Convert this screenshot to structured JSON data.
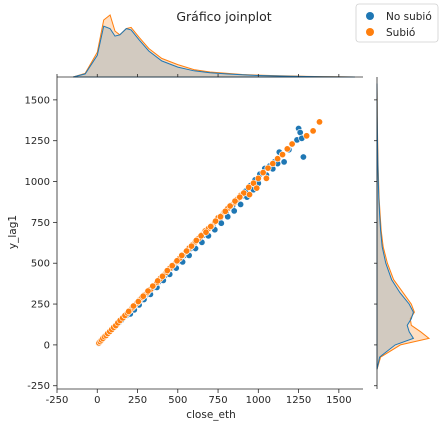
{
  "chart_data": {
    "type": "scatter",
    "title": "Gráfico joinplot",
    "xlabel": "close_eth",
    "ylabel": "y_lag1",
    "xlim": [
      -250,
      1650
    ],
    "ylim": [
      -270,
      1640
    ],
    "xticks": [
      -250,
      0,
      250,
      500,
      750,
      1000,
      1250,
      1500
    ],
    "yticks": [
      -250,
      0,
      250,
      500,
      750,
      1000,
      1250,
      1500
    ],
    "grid": false,
    "legend_position": "top-right",
    "series": [
      {
        "name": "No subió",
        "color": "#1f77b4",
        "points": [
          [
            8,
            10
          ],
          [
            15,
            18
          ],
          [
            22,
            26
          ],
          [
            30,
            32
          ],
          [
            40,
            45
          ],
          [
            48,
            52
          ],
          [
            58,
            60
          ],
          [
            70,
            75
          ],
          [
            85,
            88
          ],
          [
            95,
            100
          ],
          [
            108,
            110
          ],
          [
            120,
            122
          ],
          [
            135,
            138
          ],
          [
            150,
            152
          ],
          [
            165,
            168
          ],
          [
            180,
            185
          ],
          [
            195,
            200
          ],
          [
            210,
            212
          ],
          [
            225,
            230
          ],
          [
            240,
            245
          ],
          [
            255,
            260
          ],
          [
            270,
            272
          ],
          [
            285,
            290
          ],
          [
            300,
            305
          ],
          [
            320,
            322
          ],
          [
            340,
            345
          ],
          [
            360,
            362
          ],
          [
            380,
            385
          ],
          [
            400,
            402
          ],
          [
            420,
            425
          ],
          [
            440,
            448
          ],
          [
            460,
            470
          ],
          [
            480,
            492
          ],
          [
            500,
            510
          ],
          [
            520,
            532
          ],
          [
            540,
            548
          ],
          [
            560,
            575
          ],
          [
            580,
            590
          ],
          [
            600,
            615
          ],
          [
            620,
            640
          ],
          [
            640,
            660
          ],
          [
            660,
            672
          ],
          [
            680,
            695
          ],
          [
            700,
            720
          ],
          [
            720,
            735
          ],
          [
            740,
            760
          ],
          [
            760,
            770
          ],
          [
            780,
            800
          ],
          [
            800,
            812
          ],
          [
            820,
            838
          ],
          [
            840,
            850
          ],
          [
            860,
            880
          ],
          [
            880,
            900
          ],
          [
            900,
            912
          ],
          [
            920,
            940
          ],
          [
            950,
            975
          ],
          [
            980,
            1010
          ],
          [
            1010,
            1045
          ],
          [
            1040,
            1080
          ],
          [
            1070,
            1095
          ],
          [
            1100,
            1120
          ],
          [
            1130,
            1180
          ],
          [
            1160,
            1120
          ],
          [
            1190,
            1195
          ],
          [
            1240,
            1255
          ],
          [
            1250,
            1325
          ],
          [
            1260,
            1300
          ],
          [
            1270,
            1265
          ],
          [
            1280,
            1150
          ],
          [
            180,
            180
          ],
          [
            205,
            190
          ],
          [
            230,
            215
          ],
          [
            260,
            245
          ],
          [
            290,
            278
          ],
          [
            330,
            310
          ],
          [
            370,
            352
          ],
          [
            410,
            395
          ],
          [
            450,
            432
          ],
          [
            490,
            470
          ],
          [
            530,
            508
          ],
          [
            570,
            548
          ],
          [
            610,
            590
          ],
          [
            650,
            628
          ],
          [
            690,
            668
          ],
          [
            730,
            705
          ],
          [
            770,
            745
          ],
          [
            810,
            785
          ],
          [
            850,
            820
          ],
          [
            890,
            860
          ],
          [
            930,
            905
          ],
          [
            970,
            950
          ],
          [
            1000,
            990
          ],
          [
            1050,
            1040
          ],
          [
            1090,
            1078
          ],
          [
            1120,
            1110
          ]
        ]
      },
      {
        "name": "Subió",
        "color": "#ff7f0e",
        "points": [
          [
            10,
            12
          ],
          [
            18,
            20
          ],
          [
            26,
            30
          ],
          [
            35,
            40
          ],
          [
            45,
            50
          ],
          [
            55,
            58
          ],
          [
            65,
            70
          ],
          [
            78,
            82
          ],
          [
            90,
            95
          ],
          [
            102,
            108
          ],
          [
            115,
            118
          ],
          [
            128,
            135
          ],
          [
            142,
            150
          ],
          [
            158,
            165
          ],
          [
            172,
            180
          ],
          [
            188,
            196
          ],
          [
            202,
            210
          ],
          [
            218,
            228
          ],
          [
            232,
            242
          ],
          [
            248,
            258
          ],
          [
            262,
            275
          ],
          [
            278,
            290
          ],
          [
            292,
            305
          ],
          [
            310,
            320
          ],
          [
            330,
            340
          ],
          [
            350,
            362
          ],
          [
            370,
            382
          ],
          [
            390,
            405
          ],
          [
            410,
            425
          ],
          [
            430,
            445
          ],
          [
            450,
            468
          ],
          [
            470,
            488
          ],
          [
            490,
            510
          ],
          [
            510,
            528
          ],
          [
            530,
            550
          ],
          [
            550,
            570
          ],
          [
            570,
            592
          ],
          [
            590,
            612
          ],
          [
            610,
            632
          ],
          [
            630,
            652
          ],
          [
            650,
            675
          ],
          [
            670,
            698
          ],
          [
            690,
            712
          ],
          [
            710,
            730
          ],
          [
            730,
            752
          ],
          [
            750,
            778
          ],
          [
            770,
            790
          ],
          [
            790,
            815
          ],
          [
            810,
            835
          ],
          [
            830,
            855
          ],
          [
            850,
            870
          ],
          [
            870,
            892
          ],
          [
            890,
            915
          ],
          [
            910,
            930
          ],
          [
            940,
            965
          ],
          [
            970,
            990
          ],
          [
            1000,
            1020
          ],
          [
            1030,
            1055
          ],
          [
            1060,
            1082
          ],
          [
            1090,
            1110
          ],
          [
            1120,
            1140
          ],
          [
            1150,
            1165
          ],
          [
            1180,
            1200
          ],
          [
            1210,
            1230
          ],
          [
            1300,
            1280
          ],
          [
            1340,
            1310
          ],
          [
            1380,
            1365
          ],
          [
            195,
            205
          ],
          [
            225,
            238
          ],
          [
            255,
            265
          ],
          [
            285,
            298
          ],
          [
            315,
            330
          ],
          [
            345,
            360
          ],
          [
            375,
            392
          ],
          [
            405,
            420
          ],
          [
            435,
            455
          ],
          [
            465,
            485
          ],
          [
            495,
            515
          ],
          [
            525,
            548
          ],
          [
            555,
            575
          ],
          [
            585,
            605
          ],
          [
            615,
            640
          ],
          [
            645,
            668
          ],
          [
            675,
            690
          ],
          [
            705,
            725
          ],
          [
            735,
            758
          ],
          [
            765,
            785
          ],
          [
            795,
            818
          ],
          [
            825,
            850
          ],
          [
            855,
            880
          ],
          [
            885,
            905
          ],
          [
            945,
            920
          ],
          [
            990,
            960
          ],
          [
            1050,
            1020
          ]
        ]
      }
    ],
    "x_marginal": {
      "x": [
        -150,
        -75,
        0,
        40,
        80,
        110,
        140,
        180,
        210,
        260,
        320,
        400,
        500,
        600,
        700,
        800,
        900,
        1000,
        1100,
        1200,
        1300,
        1400,
        1500,
        1600
      ],
      "no_subio": [
        0,
        0.05,
        0.35,
        0.82,
        0.78,
        0.66,
        0.68,
        0.78,
        0.76,
        0.6,
        0.42,
        0.26,
        0.16,
        0.1,
        0.07,
        0.05,
        0.035,
        0.025,
        0.018,
        0.012,
        0.008,
        0.004,
        0.002,
        0
      ],
      "subio": [
        0,
        0.06,
        0.4,
        0.92,
        1.0,
        0.74,
        0.68,
        0.78,
        0.8,
        0.64,
        0.46,
        0.3,
        0.2,
        0.12,
        0.08,
        0.06,
        0.04,
        0.03,
        0.022,
        0.016,
        0.01,
        0.006,
        0.003,
        0
      ]
    },
    "y_marginal": {
      "y": [
        -150,
        -75,
        0,
        40,
        80,
        120,
        160,
        200,
        250,
        320,
        400,
        500,
        600,
        700,
        800,
        900,
        1000,
        1100,
        1200,
        1300,
        1400,
        1500,
        1600
      ],
      "no_subio": [
        0,
        0.05,
        0.35,
        0.7,
        0.62,
        0.58,
        0.66,
        0.7,
        0.62,
        0.44,
        0.28,
        0.17,
        0.1,
        0.07,
        0.05,
        0.035,
        0.025,
        0.018,
        0.012,
        0.008,
        0.004,
        0.002,
        0
      ],
      "subio": [
        0,
        0.07,
        0.45,
        1.0,
        0.84,
        0.66,
        0.64,
        0.72,
        0.66,
        0.5,
        0.32,
        0.2,
        0.12,
        0.08,
        0.06,
        0.04,
        0.03,
        0.022,
        0.016,
        0.01,
        0.006,
        0.003,
        0
      ]
    }
  }
}
